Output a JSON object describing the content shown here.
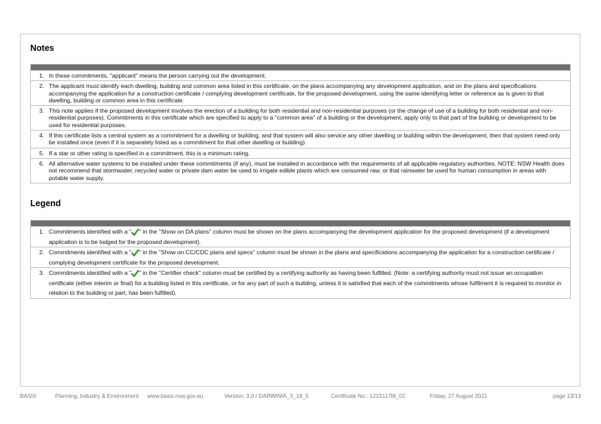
{
  "notes": {
    "title": "Notes",
    "items": [
      {
        "number": "1.",
        "text": "In these commitments, \"applicant\" means the person carrying out the development."
      },
      {
        "number": "2.",
        "text": "The applicant must identify each dwelling, building and common area listed in this certificate, on the plans accompanying any development application, and on the plans and specifications accompanying the application for a construction certificate / complying development certificate, for the proposed development, using the same identifying letter or reference as is given to that dwelling, building or common area in this certificate."
      },
      {
        "number": "3.",
        "text": "This note applies if the proposed development involves the erection of a building for both residential and non-residential purposes (or the change of use of a building for both residential and non-residential purposes). Commitments in this certificate which are specified to apply to a \"common area\" of a building or the development, apply only to that part of the building or development to be used for residential purposes."
      },
      {
        "number": "4.",
        "text": "If this certificate lists a central system as a commitment for a dwelling or building, and that system will also service any other dwelling or building within the development, then that system need only be installed once (even if it is separately listed as a commitment for that other dwelling or building)."
      },
      {
        "number": "5.",
        "text": "If a star or other rating is specified in a commitment, this is a minimum rating."
      },
      {
        "number": "6.",
        "text": "All alternative water systems to be installed under these commitments (if any), must be installed in accordance with the requirements of all applicable regulatory authorities. NOTE: NSW Health does not recommend that stormwater, recycled water or private dam water be used to irrigate edible plants which are consumed raw, or that rainwater be used for human consumption in areas with potable water supply."
      }
    ]
  },
  "legend": {
    "title": "Legend",
    "items": [
      {
        "number": "1.",
        "before": "Commitments identified with a \"",
        "after": "\" in the \"Show on DA plans\" column must be shown on the plans accompanying the development application for the proposed development (if a development application is to be lodged for the proposed development)."
      },
      {
        "number": "2.",
        "before": "Commitments identified with a \"",
        "after": "\" in the \"Show on CC/CDC plans and specs\" column must be shown in the plans and specifications accompanying the application for a construction certificate / complying development certificate for the proposed development."
      },
      {
        "number": "3.",
        "before": "Commitments identified with a \"",
        "after": "\" in the \"Certifier check\" column must be certified by a certifying authority as having been fulfilled. (Note: a certifying authority must not issue an occupation certificate (either interim or final) for a building listed in this certificate, or for any part of such a building, unless it is satisfied that each of the commitments whose fulfilment it is required to monitor in relation to the building or part, has been fulfilled)."
      }
    ]
  },
  "footer": {
    "product": "BASIX",
    "department": "Planning, Industry & Environment",
    "website": "www.basix.nsw.gov.au",
    "version": "Version: 3.0 / DARWINIA_3_18_5",
    "certificate": "Certificate No.: 1215117M_02",
    "date": "Friday, 27 August 2021",
    "page": "page 13/13"
  }
}
